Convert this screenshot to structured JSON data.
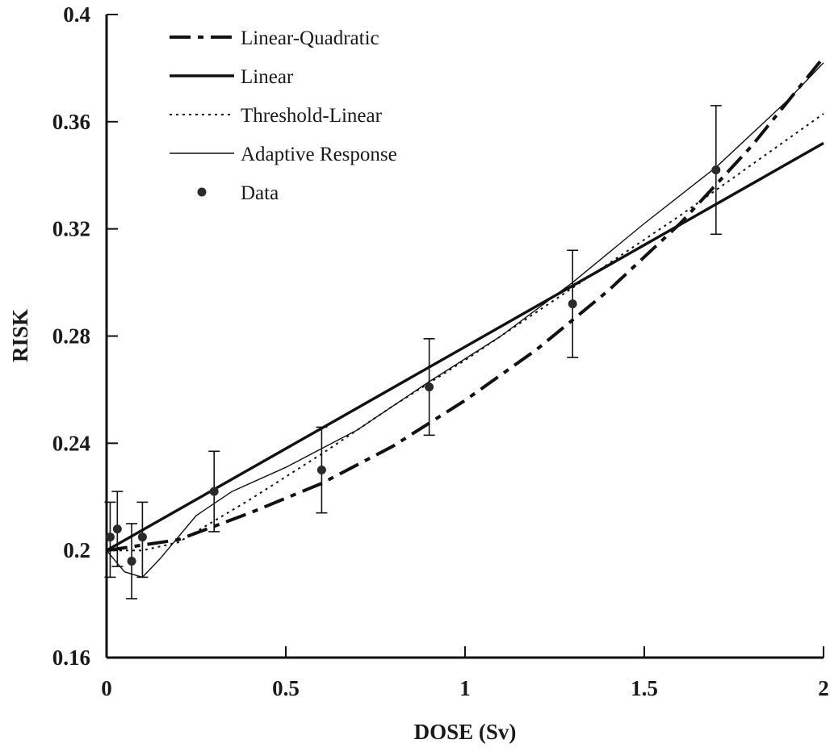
{
  "chart_data": {
    "type": "line",
    "title": "",
    "xlabel": "DOSE  (Sv)",
    "ylabel": "RISK",
    "xlim": [
      0,
      2
    ],
    "ylim": [
      0.16,
      0.4
    ],
    "x_ticks": [
      0,
      0.5,
      1,
      1.5,
      2
    ],
    "x_tick_labels": [
      "0",
      "0.5",
      "1",
      "1.5",
      "2"
    ],
    "y_ticks": [
      0.16,
      0.2,
      0.24,
      0.28,
      0.32,
      0.36,
      0.4
    ],
    "y_tick_labels": [
      "0.16",
      "0.2",
      "0.24",
      "0.28",
      "0.32",
      "0.36",
      "0.4"
    ],
    "grid": false,
    "legend_position": "top-left",
    "series": [
      {
        "name": "Linear-Quadratic",
        "style": "dash-dot-heavy",
        "x": [
          0,
          0.2,
          0.4,
          0.6,
          0.8,
          1.0,
          1.2,
          1.4,
          1.6,
          1.8,
          2.0
        ],
        "y": [
          0.2,
          0.204,
          0.214,
          0.225,
          0.239,
          0.256,
          0.275,
          0.297,
          0.322,
          0.351,
          0.384
        ]
      },
      {
        "name": "Linear",
        "style": "solid-thick",
        "x": [
          0,
          0.5,
          1.0,
          1.5,
          2.0
        ],
        "y": [
          0.2,
          0.238,
          0.276,
          0.314,
          0.352
        ]
      },
      {
        "name": "Threshold-Linear",
        "style": "dotted",
        "x": [
          0,
          0.1,
          0.2,
          0.4,
          0.6,
          0.8,
          1.0,
          1.3,
          1.6,
          2.0
        ],
        "y": [
          0.2,
          0.2,
          0.203,
          0.219,
          0.236,
          0.254,
          0.271,
          0.298,
          0.325,
          0.363
        ]
      },
      {
        "name": "Adaptive Response",
        "style": "solid-thin",
        "x": [
          0,
          0.05,
          0.1,
          0.15,
          0.25,
          0.35,
          0.5,
          0.7,
          0.9,
          1.1,
          1.3,
          1.5,
          1.7,
          1.9,
          2.0
        ],
        "y": [
          0.2,
          0.192,
          0.19,
          0.197,
          0.213,
          0.222,
          0.231,
          0.245,
          0.263,
          0.28,
          0.3,
          0.322,
          0.343,
          0.368,
          0.382
        ]
      }
    ],
    "data_points": {
      "name": "Data",
      "points": [
        {
          "x": 0.01,
          "y": 0.205,
          "err_low": 0.19,
          "err_high": 0.218
        },
        {
          "x": 0.03,
          "y": 0.208,
          "err_low": 0.194,
          "err_high": 0.222
        },
        {
          "x": 0.07,
          "y": 0.196,
          "err_low": 0.182,
          "err_high": 0.21
        },
        {
          "x": 0.1,
          "y": 0.205,
          "err_low": 0.19,
          "err_high": 0.218
        },
        {
          "x": 0.3,
          "y": 0.222,
          "err_low": 0.207,
          "err_high": 0.237
        },
        {
          "x": 0.6,
          "y": 0.23,
          "err_low": 0.214,
          "err_high": 0.246
        },
        {
          "x": 0.9,
          "y": 0.261,
          "err_low": 0.243,
          "err_high": 0.279
        },
        {
          "x": 1.3,
          "y": 0.292,
          "err_low": 0.272,
          "err_high": 0.312
        },
        {
          "x": 1.7,
          "y": 0.342,
          "err_low": 0.318,
          "err_high": 0.366
        }
      ]
    }
  }
}
